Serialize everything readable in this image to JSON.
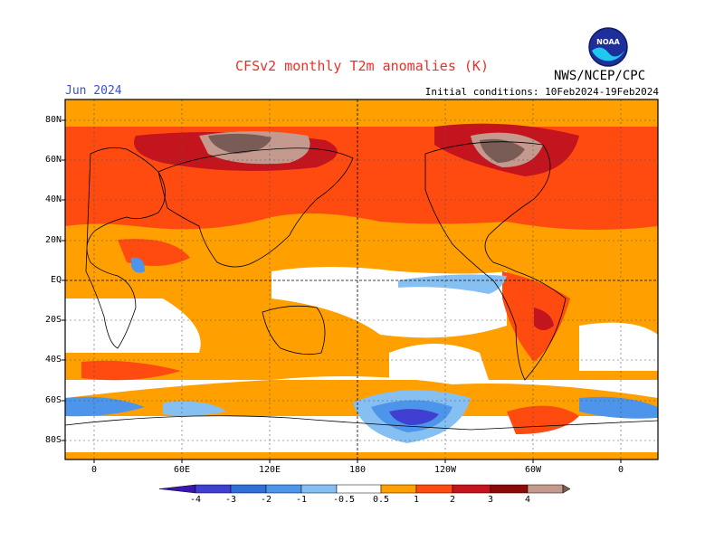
{
  "header": {
    "title": "CFSv2 monthly T2m anomalies (K)",
    "month": "Jun 2024",
    "initial_conditions": "Initial conditions: 10Feb2024-19Feb2024",
    "agency": "NWS/NCEP/CPC",
    "logo_text": "NOAA"
  },
  "axes": {
    "lat_labels": [
      "80N",
      "60N",
      "40N",
      "20N",
      "EQ",
      "20S",
      "40S",
      "60S",
      "80S"
    ],
    "lon_labels": [
      "0",
      "60E",
      "120E",
      "180",
      "120W",
      "60W",
      "0"
    ]
  },
  "colorbar": {
    "labels": [
      "-4",
      "-3",
      "-2",
      "-1",
      "-0.5",
      "0.5",
      "1",
      "2",
      "3",
      "4"
    ],
    "colors": [
      "#3b16b5",
      "#3f3fd1",
      "#2f6fd8",
      "#4d95ea",
      "#86c0f3",
      "#ffffff",
      "#ff9f00",
      "#ff4a10",
      "#c4141d",
      "#8c0a0a",
      "#c49a8e",
      "#7a5c56"
    ]
  },
  "palette": {
    "ocean_base": "#ff9f00",
    "warm1": "#ff4a10",
    "warm2": "#c4141d",
    "warm3": "#c49a8e",
    "warm4": "#7a5c56",
    "cool1": "#86c0f3",
    "cool2": "#4d95ea",
    "cool3": "#3f3fd1",
    "neutral": "#ffffff"
  }
}
